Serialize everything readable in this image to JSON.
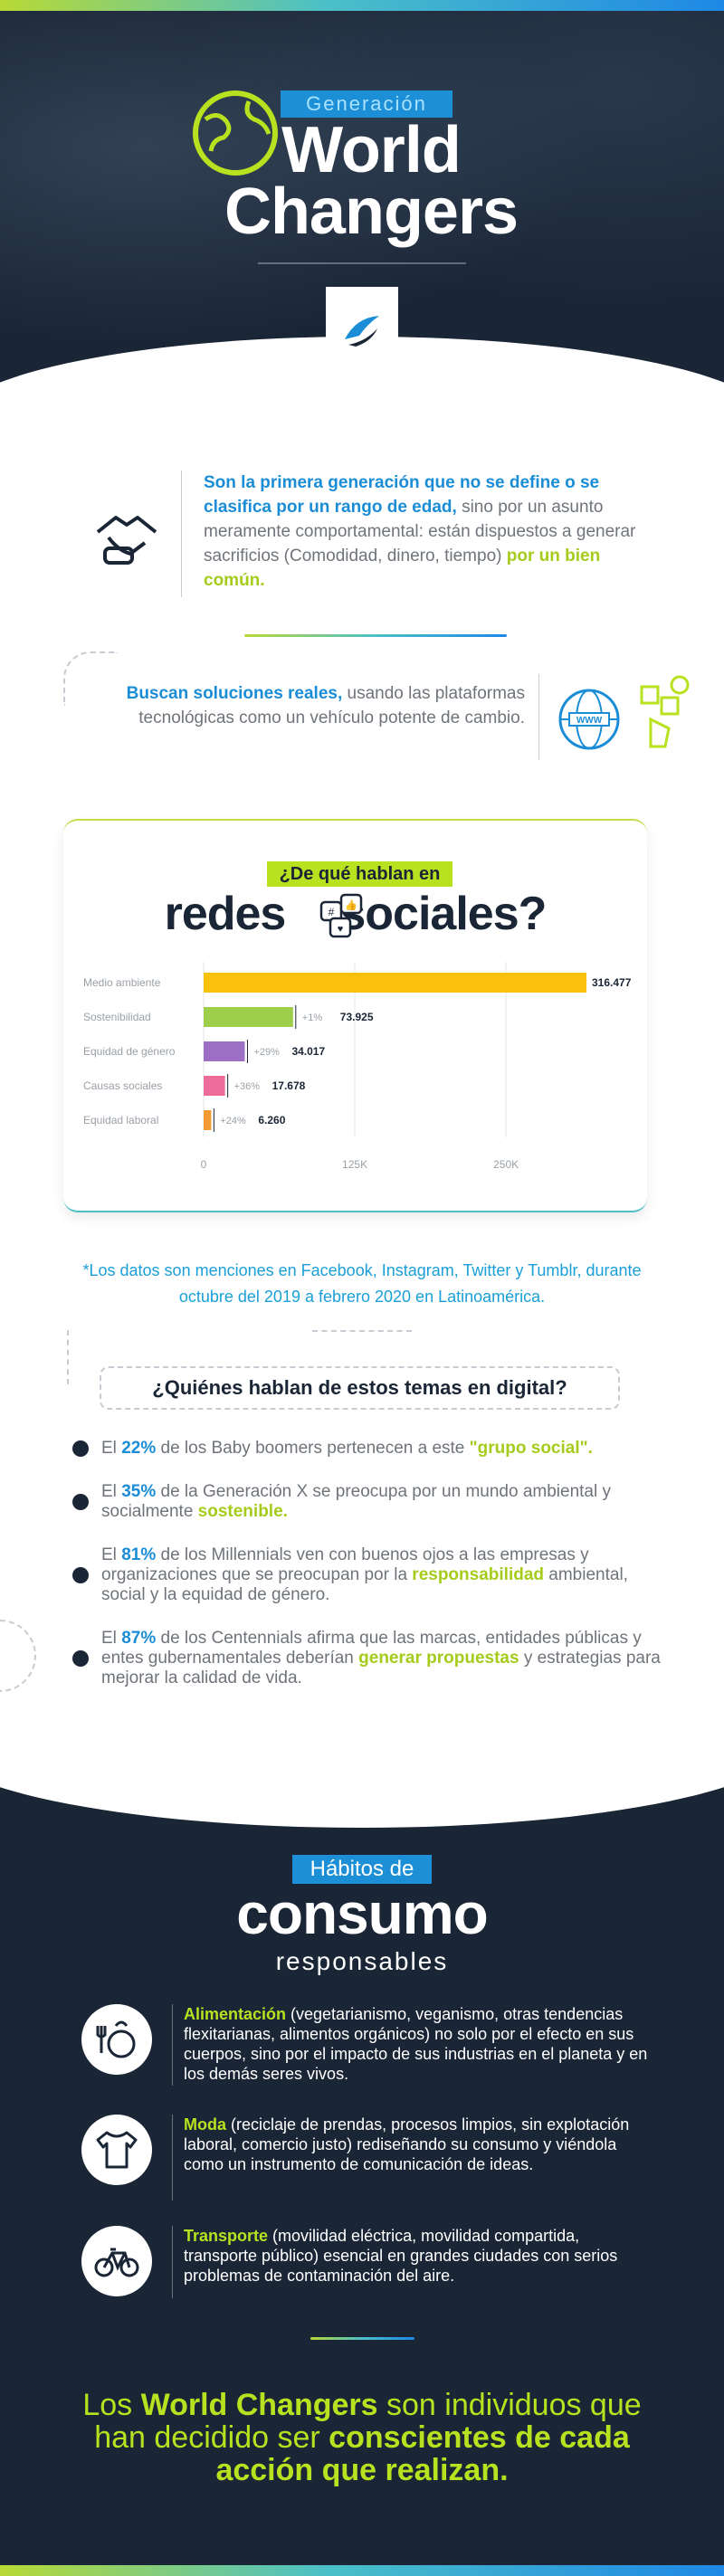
{
  "hero": {
    "subtitle": "Generación",
    "title_line1": "World",
    "title_line2": "Changers"
  },
  "intro": {
    "bold_blue": "Son la primera generación que no se define o se clasifica por un rango de edad,",
    "normal": " sino por un asunto meramente comportamental: están dispuestos a generar sacrificios (Comodidad, dinero, tiempo) ",
    "bold_lime": "por un bien común."
  },
  "search": {
    "bold_blue": "Buscan soluciones reales,",
    "normal": " usando las plataformas tecnológicas como un vehículo potente de cambio."
  },
  "social": {
    "pill": "¿De qué hablan en",
    "title_left": "redes",
    "title_right": "sociales?"
  },
  "chart_data": {
    "type": "bar",
    "orientation": "horizontal",
    "categories": [
      "Medio ambiente",
      "Sostenibilidad",
      "Equidad de género",
      "Causas sociales",
      "Equidad laboral"
    ],
    "values": [
      316477,
      73925,
      34017,
      17678,
      6260
    ],
    "value_labels": [
      "316.477",
      "73.925",
      "34.017",
      "17.678",
      "6.260"
    ],
    "growth_labels": [
      "",
      "+1%",
      "+29%",
      "+36%",
      "+24%"
    ],
    "bar_colors": [
      "#f9c10c",
      "#9ccd4b",
      "#9c6fc4",
      "#ee6c9a",
      "#f39a32"
    ],
    "x_ticks": [
      "0",
      "125K",
      "250K"
    ],
    "x_tick_values": [
      0,
      125000,
      250000
    ],
    "xlim": [
      0,
      316477
    ],
    "grid": true
  },
  "note": "*Los datos son menciones en Facebook, Instagram, Twitter y Tumblr, durante octubre del 2019 a febrero 2020 en Latinoamérica.",
  "who": {
    "title": "¿Quiénes hablan de estos temas en digital?",
    "items": [
      {
        "pre": "El ",
        "num": "22%",
        "mid": " de los Baby boomers pertenecen a este ",
        "kw": "\"grupo social\".",
        "post": ""
      },
      {
        "pre": "El ",
        "num": "35%",
        "mid": " de la Generación X se preocupa por un mundo ambiental y socialmente ",
        "kw": "sostenible.",
        "post": ""
      },
      {
        "pre": "El ",
        "num": "81%",
        "mid": " de los Millennials ven con buenos ojos a las empresas y organizaciones que se preocupan por la ",
        "kw": "responsabilidad",
        "post": " ambiental, social y la equidad de género."
      },
      {
        "pre": "El ",
        "num": "87%",
        "mid": " de los Centennials afirma que las marcas, entidades públicas y entes gubernamentales deberían ",
        "kw": "generar propuestas",
        "post": " y estrategias para mejorar la calidad de vida."
      }
    ]
  },
  "habits": {
    "pill": "Hábitos de",
    "title": "consumo",
    "subtitle": "responsables",
    "items": [
      {
        "kw": "Alimentación",
        "text": " (vegetarianismo, veganismo, otras tendencias flexitarianas, alimentos orgánicos) no solo por el efecto en sus cuerpos, sino por el impacto de sus industrias en el planeta y en los demás seres vivos.",
        "icon": "food-icon"
      },
      {
        "kw": "Moda",
        "text": " (reciclaje de prendas, procesos limpios, sin explotación laboral, comercio justo) rediseñando su consumo y viéndola como un instrumento de comunicación de ideas.",
        "icon": "clothes-icon"
      },
      {
        "kw": "Transporte",
        "text": " (movilidad eléctrica, movilidad compartida, transporte público) esencial en grandes ciudades con serios problemas de contaminación del aire.",
        "icon": "bicycle-icon"
      }
    ]
  },
  "final": {
    "t1": "Los ",
    "b1": "World Changers",
    "t2": " son individuos que han decidido ser ",
    "b2": "conscientes de cada acción que realizan."
  },
  "colors": {
    "navy": "#1a2535",
    "blue": "#1b8dd6",
    "lime": "#b8e21f"
  }
}
